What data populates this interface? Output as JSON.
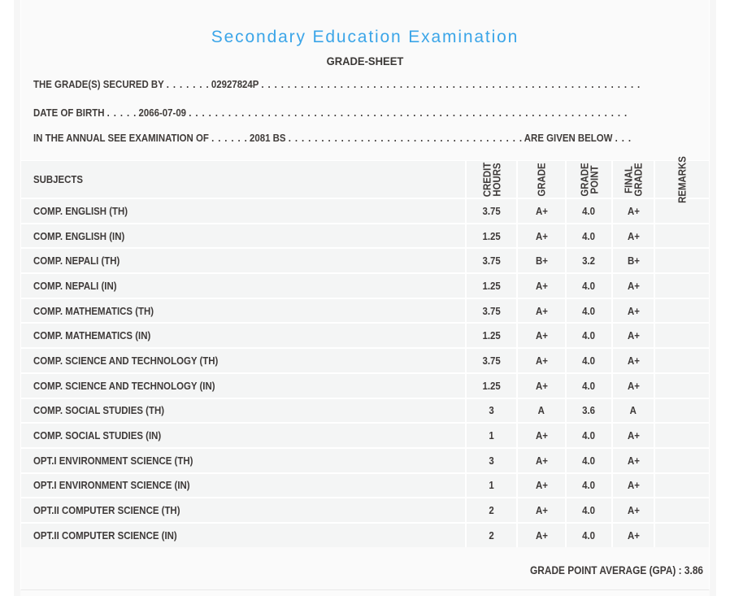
{
  "colors": {
    "title_blue": "#3aa2e3",
    "text_dark": "#3e3a39",
    "sheet_bg": "#fafafa",
    "cell_bg": "#f4f5f5"
  },
  "header": {
    "title": "Secondary Education Examination",
    "subtitle": "GRADE-SHEET"
  },
  "info_lines": [
    {
      "label": "THE GRADE(S) SECURED BY",
      "dots_before": ". . . . . . .",
      "value": "02927824P",
      "dots_after": ". . . . . . . . . . . . . . . . . . . . . . . . . . . . . . . . . . . . . . . . . . . . . . . . . . . . . . . . . .",
      "suffix": "",
      "dots_end": ""
    },
    {
      "label": "DATE OF BIRTH",
      "dots_before": ". . . . .",
      "value": "2066-07-09",
      "dots_after": ". . . . . . . . . . . . . . . . . . . . . . . . . . . . . . . . . . . . . . . . . . . . . . . . . . . . . . . . . . . . . . . . . . .",
      "suffix": "",
      "dots_end": ""
    },
    {
      "label": "IN THE ANNUAL SEE EXAMINATION OF",
      "dots_before": ". . . . . .",
      "value": "2081 BS",
      "dots_after": ". . . . . . . . . . . . . . . . . . . . . . . . . . . . . . . . . . . .",
      "suffix": "ARE GIVEN BELOW",
      "dots_end": ". . ."
    }
  ],
  "table": {
    "subject_header": "SUBJECTS",
    "rotated_headers": [
      "CREDIT\nHOURS",
      "GRADE",
      "GRADE\nPOINT",
      "FINAL\nGRADE",
      "REMARKS"
    ],
    "rows": [
      {
        "subject": "COMP. ENGLISH (TH)",
        "credit_hours": "3.75",
        "grade": "A+",
        "grade_point": "4.0",
        "final_grade": "A+",
        "remarks": ""
      },
      {
        "subject": "COMP. ENGLISH (IN)",
        "credit_hours": "1.25",
        "grade": "A+",
        "grade_point": "4.0",
        "final_grade": "A+",
        "remarks": ""
      },
      {
        "subject": "COMP. NEPALI (TH)",
        "credit_hours": "3.75",
        "grade": "B+",
        "grade_point": "3.2",
        "final_grade": "B+",
        "remarks": ""
      },
      {
        "subject": "COMP. NEPALI (IN)",
        "credit_hours": "1.25",
        "grade": "A+",
        "grade_point": "4.0",
        "final_grade": "A+",
        "remarks": ""
      },
      {
        "subject": "COMP. MATHEMATICS (TH)",
        "credit_hours": "3.75",
        "grade": "A+",
        "grade_point": "4.0",
        "final_grade": "A+",
        "remarks": ""
      },
      {
        "subject": "COMP. MATHEMATICS (IN)",
        "credit_hours": "1.25",
        "grade": "A+",
        "grade_point": "4.0",
        "final_grade": "A+",
        "remarks": ""
      },
      {
        "subject": "COMP. SCIENCE AND TECHNOLOGY (TH)",
        "credit_hours": "3.75",
        "grade": "A+",
        "grade_point": "4.0",
        "final_grade": "A+",
        "remarks": ""
      },
      {
        "subject": "COMP. SCIENCE AND TECHNOLOGY (IN)",
        "credit_hours": "1.25",
        "grade": "A+",
        "grade_point": "4.0",
        "final_grade": "A+",
        "remarks": ""
      },
      {
        "subject": "COMP. SOCIAL STUDIES (TH)",
        "credit_hours": "3",
        "grade": "A",
        "grade_point": "3.6",
        "final_grade": "A",
        "remarks": ""
      },
      {
        "subject": "COMP. SOCIAL STUDIES (IN)",
        "credit_hours": "1",
        "grade": "A+",
        "grade_point": "4.0",
        "final_grade": "A+",
        "remarks": ""
      },
      {
        "subject": "OPT.I ENVIRONMENT SCIENCE (TH)",
        "credit_hours": "3",
        "grade": "A+",
        "grade_point": "4.0",
        "final_grade": "A+",
        "remarks": ""
      },
      {
        "subject": "OPT.I ENVIRONMENT SCIENCE (IN)",
        "credit_hours": "1",
        "grade": "A+",
        "grade_point": "4.0",
        "final_grade": "A+",
        "remarks": ""
      },
      {
        "subject": "OPT.II COMPUTER SCIENCE (TH)",
        "credit_hours": "2",
        "grade": "A+",
        "grade_point": "4.0",
        "final_grade": "A+",
        "remarks": ""
      },
      {
        "subject": "OPT.II COMPUTER SCIENCE (IN)",
        "credit_hours": "2",
        "grade": "A+",
        "grade_point": "4.0",
        "final_grade": "A+",
        "remarks": ""
      }
    ]
  },
  "footer": {
    "gpa_label": "GRADE POINT AVERAGE (GPA) : 3.86"
  }
}
